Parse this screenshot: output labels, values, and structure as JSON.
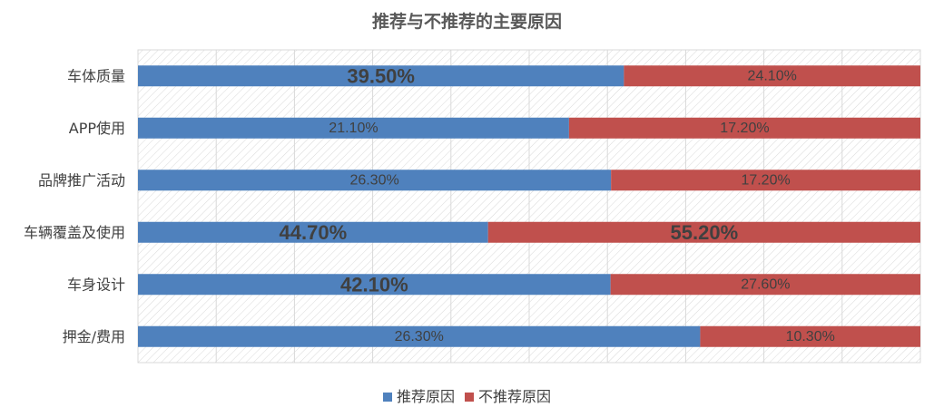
{
  "chart_data": {
    "type": "bar",
    "stacked": true,
    "orientation": "horizontal",
    "title": "推荐与不推荐的主要原因",
    "categories": [
      "车体质量",
      "APP使用",
      "品牌推广活动",
      "车辆覆盖及使用",
      "车身设计",
      "押金/费用"
    ],
    "series": [
      {
        "name": "推荐原因",
        "color": "#4F81BD",
        "values": [
          39.5,
          21.1,
          26.3,
          44.7,
          42.1,
          26.3
        ],
        "labels": [
          "39.50%",
          "21.10%",
          "26.30%",
          "44.70%",
          "42.10%",
          "26.30%"
        ],
        "emphasized": [
          true,
          false,
          false,
          true,
          true,
          false
        ]
      },
      {
        "name": "不推荐原因",
        "color": "#C0504D",
        "values": [
          24.1,
          17.2,
          17.2,
          55.2,
          27.6,
          10.3
        ],
        "labels": [
          "24.10%",
          "17.20%",
          "17.20%",
          "55.20%",
          "27.60%",
          "10.30%"
        ],
        "emphasized": [
          false,
          false,
          false,
          true,
          false,
          false
        ]
      }
    ],
    "normalized_to": 100,
    "grid": true,
    "legend_position": "bottom"
  }
}
